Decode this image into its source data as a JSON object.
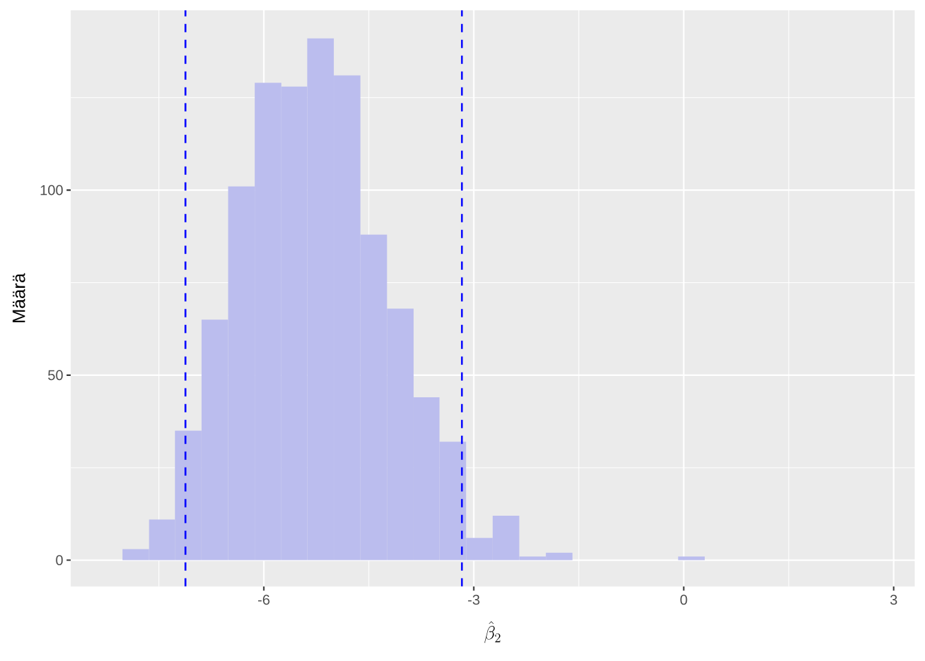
{
  "chart_data": {
    "type": "histogram",
    "xlabel": "\\hat{\\beta}_2",
    "ylabel": "Määrä",
    "bins": [
      -8.02,
      -7.64,
      -7.27,
      -6.89,
      -6.51,
      -6.13,
      -5.75,
      -5.38,
      -5.0,
      -4.62,
      -4.24,
      -3.86,
      -3.49,
      -3.11,
      -2.73,
      -2.35,
      -1.97,
      -1.59,
      -0.08,
      0.3
    ],
    "values": [
      3,
      11,
      35,
      65,
      101,
      129,
      128,
      141,
      131,
      88,
      68,
      44,
      32,
      6,
      12,
      1,
      2,
      0,
      1
    ],
    "color": "#bbbdee",
    "xlim": [
      -8.76,
      3.3
    ],
    "ylim": [
      -7.1,
      148.6
    ],
    "xticks": [
      -6,
      -3,
      0,
      3
    ],
    "yticks": [
      0,
      50,
      100
    ],
    "grid": true,
    "ref_lines": [
      {
        "axis": "x",
        "value": -7.12,
        "color": "#0000ff",
        "line_style": "dashed"
      },
      {
        "axis": "x",
        "value": -3.17,
        "color": "#0000ff",
        "line_style": "dashed"
      }
    ]
  }
}
